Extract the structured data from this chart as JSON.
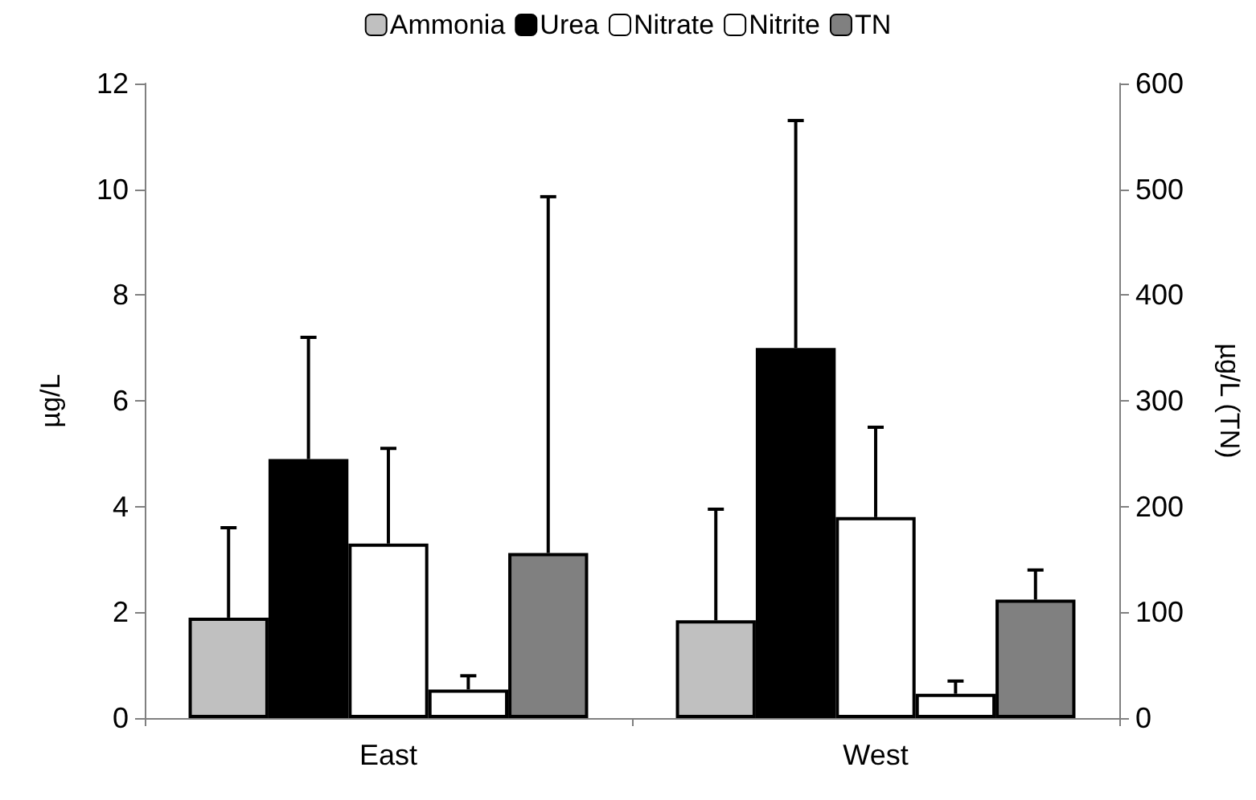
{
  "chart_data": {
    "type": "bar",
    "categories": [
      "East",
      "West"
    ],
    "ylabel": "µg/L",
    "y2label": "µg/L (TN)",
    "ylim": [
      0,
      12
    ],
    "yticks": [
      0,
      2,
      4,
      6,
      8,
      10,
      12
    ],
    "y2lim": [
      0,
      600
    ],
    "y2ticks": [
      0,
      100,
      200,
      300,
      400,
      500,
      600
    ],
    "legend": "top",
    "grid": false,
    "series": [
      {
        "name": "Ammonia",
        "color": "#c0c0c0",
        "values": [
          1.9,
          1.85
        ],
        "errors": [
          [
            1.9,
            3.6
          ],
          [
            1.85,
            3.95
          ]
        ]
      },
      {
        "name": "Urea",
        "color": "#000000",
        "values": [
          4.9,
          7.0
        ],
        "errors": [
          [
            4.9,
            7.2
          ],
          [
            7.0,
            11.3
          ]
        ]
      },
      {
        "name": "Nitrate",
        "color": "#ffffff",
        "values": [
          3.3,
          3.8
        ],
        "errors": [
          [
            3.3,
            5.1
          ],
          [
            3.8,
            5.5
          ]
        ]
      },
      {
        "name": "Nitrite",
        "color": "#ffffff",
        "values": [
          0.54,
          0.46
        ],
        "errors": [
          [
            0.54,
            0.8
          ],
          [
            0.46,
            0.7
          ]
        ]
      },
      {
        "name": "TN",
        "color": "#808080",
        "axis": "y2",
        "values": [
          156,
          112
        ],
        "errors": [
          [
            156,
            493
          ],
          [
            112,
            140
          ]
        ]
      }
    ]
  }
}
